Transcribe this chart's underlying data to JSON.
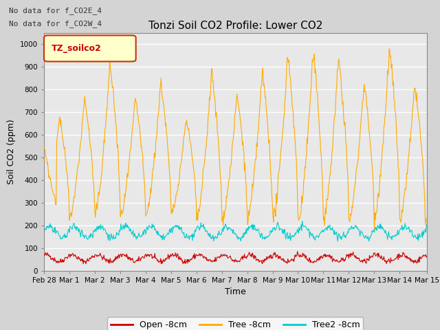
{
  "title": "Tonzi Soil CO2 Profile: Lower CO2",
  "xlabel": "Time",
  "ylabel": "Soil CO2 (ppm)",
  "ylim": [
    0,
    1050
  ],
  "yticks": [
    0,
    100,
    200,
    300,
    400,
    500,
    600,
    700,
    800,
    900,
    1000
  ],
  "annotation1": "No data for f_CO2E_4",
  "annotation2": "No data for f_CO2W_4",
  "legend_box_label": "TZ_soilco2",
  "line_colors": {
    "open": "#cc0000",
    "tree": "#ffaa00",
    "tree2": "#00cccc"
  },
  "legend_labels": [
    "Open -8cm",
    "Tree -8cm",
    "Tree2 -8cm"
  ],
  "fig_facecolor": "#d4d4d4",
  "plot_facecolor": "#e8e8e8",
  "grid_color": "#ffffff",
  "tick_label_fontsize": 7.5,
  "title_fontsize": 11,
  "axis_label_fontsize": 9
}
